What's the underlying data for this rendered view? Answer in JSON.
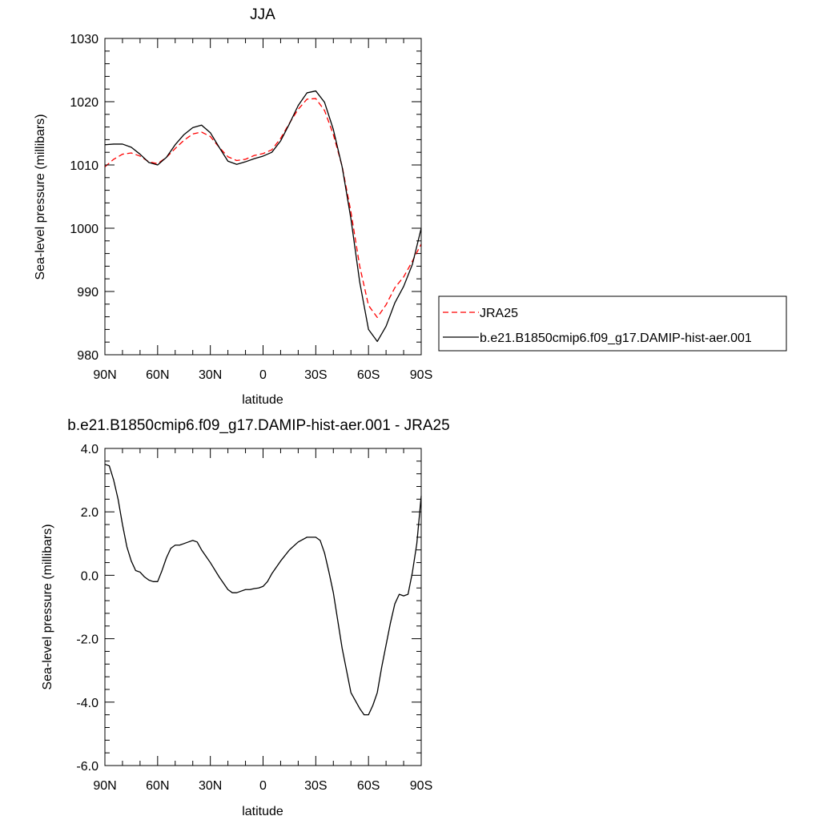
{
  "chart_data": [
    {
      "type": "line",
      "title": "JJA",
      "xlabel": "latitude",
      "ylabel": "Sea-level pressure (millibars)",
      "xlim": [
        -90,
        90
      ],
      "ylim": [
        980,
        1030
      ],
      "xticks": [
        -90,
        -60,
        -30,
        0,
        30,
        60,
        90
      ],
      "xtick_labels": [
        "90N",
        "60N",
        "30N",
        "0",
        "30S",
        "60S",
        "90S"
      ],
      "yticks": [
        980,
        990,
        1000,
        1010,
        1020,
        1030
      ],
      "ytick_labels": [
        "980",
        "990",
        "1000",
        "1010",
        "1020",
        "1030"
      ],
      "grid": false,
      "legend_placement": "right",
      "x": [
        -90,
        -85,
        -80,
        -75,
        -70,
        -65,
        -60,
        -55,
        -50,
        -45,
        -40,
        -35,
        -30,
        -25,
        -20,
        -15,
        -10,
        -5,
        0,
        5,
        10,
        15,
        20,
        25,
        30,
        35,
        40,
        45,
        50,
        55,
        60,
        65,
        70,
        75,
        80,
        85,
        90
      ],
      "series": [
        {
          "name": "JRA25",
          "color": "#ff0000",
          "dash": "dashed",
          "values": [
            1009.7,
            1010.9,
            1011.7,
            1011.9,
            1011.4,
            1010.5,
            1010.2,
            1011.2,
            1012.6,
            1013.9,
            1014.9,
            1015.2,
            1014.5,
            1012.8,
            1011.3,
            1010.7,
            1010.9,
            1011.5,
            1011.8,
            1012.4,
            1014.2,
            1016.6,
            1018.8,
            1020.4,
            1020.5,
            1018.6,
            1014.8,
            1009.8,
            1002.6,
            994.0,
            987.8,
            985.9,
            987.9,
            990.6,
            992.3,
            994.8,
            997.5
          ]
        },
        {
          "name": "b.e21.B1850cmip6.f09_g17.DAMIP-hist-aer.001",
          "color": "#000000",
          "dash": "solid",
          "values": [
            1013.2,
            1013.3,
            1013.3,
            1012.8,
            1011.7,
            1010.4,
            1010.0,
            1011.2,
            1013.2,
            1014.8,
            1015.9,
            1016.3,
            1015.1,
            1012.8,
            1010.6,
            1010.1,
            1010.5,
            1011.0,
            1011.4,
            1012.0,
            1013.8,
            1016.5,
            1019.4,
            1021.4,
            1021.7,
            1019.9,
            1015.6,
            1009.7,
            1001.5,
            991.5,
            984.0,
            982.1,
            984.5,
            988.2,
            990.8,
            994.3,
            1000.0
          ]
        }
      ]
    },
    {
      "type": "line",
      "title": "b.e21.B1850cmip6.f09_g17.DAMIP-hist-aer.001 - JRA25",
      "xlabel": "latitude",
      "ylabel": "Sea-level pressure (millibars)",
      "xlim": [
        -90,
        90
      ],
      "ylim": [
        -6,
        4
      ],
      "xticks": [
        -90,
        -60,
        -30,
        0,
        30,
        60,
        90
      ],
      "xtick_labels": [
        "90N",
        "60N",
        "30N",
        "0",
        "30S",
        "60S",
        "90S"
      ],
      "yticks": [
        -6,
        -4,
        -2,
        0,
        2,
        4
      ],
      "ytick_labels": [
        "-6.0",
        "-4.0",
        "-2.0",
        "0.0",
        "2.0",
        "4.0"
      ],
      "grid": false,
      "x": [
        -90,
        -87.5,
        -85,
        -82.5,
        -80,
        -77.5,
        -75,
        -72.5,
        -70,
        -67.5,
        -65,
        -62.5,
        -60,
        -57.5,
        -55,
        -52.5,
        -50,
        -47.5,
        -45,
        -42.5,
        -40,
        -37.5,
        -35,
        -30,
        -25,
        -20,
        -17.5,
        -15,
        -12.5,
        -10,
        -7.5,
        -5,
        -2.5,
        0,
        2.5,
        5,
        10,
        15,
        20,
        25,
        30,
        32.5,
        35,
        37.5,
        40,
        45,
        50,
        55,
        57.5,
        60,
        62.5,
        65,
        67.5,
        70,
        72.5,
        75,
        77.5,
        80,
        82.5,
        85,
        87.5,
        90
      ],
      "series": [
        {
          "name": "",
          "color": "#000000",
          "dash": "solid",
          "values": [
            3.5,
            3.45,
            3.0,
            2.4,
            1.6,
            0.9,
            0.45,
            0.15,
            0.1,
            -0.05,
            -0.15,
            -0.2,
            -0.2,
            0.15,
            0.55,
            0.85,
            0.95,
            0.95,
            1.0,
            1.05,
            1.1,
            1.05,
            0.8,
            0.4,
            -0.05,
            -0.45,
            -0.55,
            -0.55,
            -0.5,
            -0.45,
            -0.45,
            -0.42,
            -0.4,
            -0.35,
            -0.2,
            0.05,
            0.45,
            0.8,
            1.05,
            1.2,
            1.2,
            1.1,
            0.7,
            0.1,
            -0.55,
            -2.3,
            -3.7,
            -4.2,
            -4.4,
            -4.4,
            -4.1,
            -3.7,
            -2.9,
            -2.2,
            -1.5,
            -0.9,
            -0.6,
            -0.65,
            -0.6,
            0.1,
            1.0,
            2.5
          ]
        }
      ]
    }
  ]
}
